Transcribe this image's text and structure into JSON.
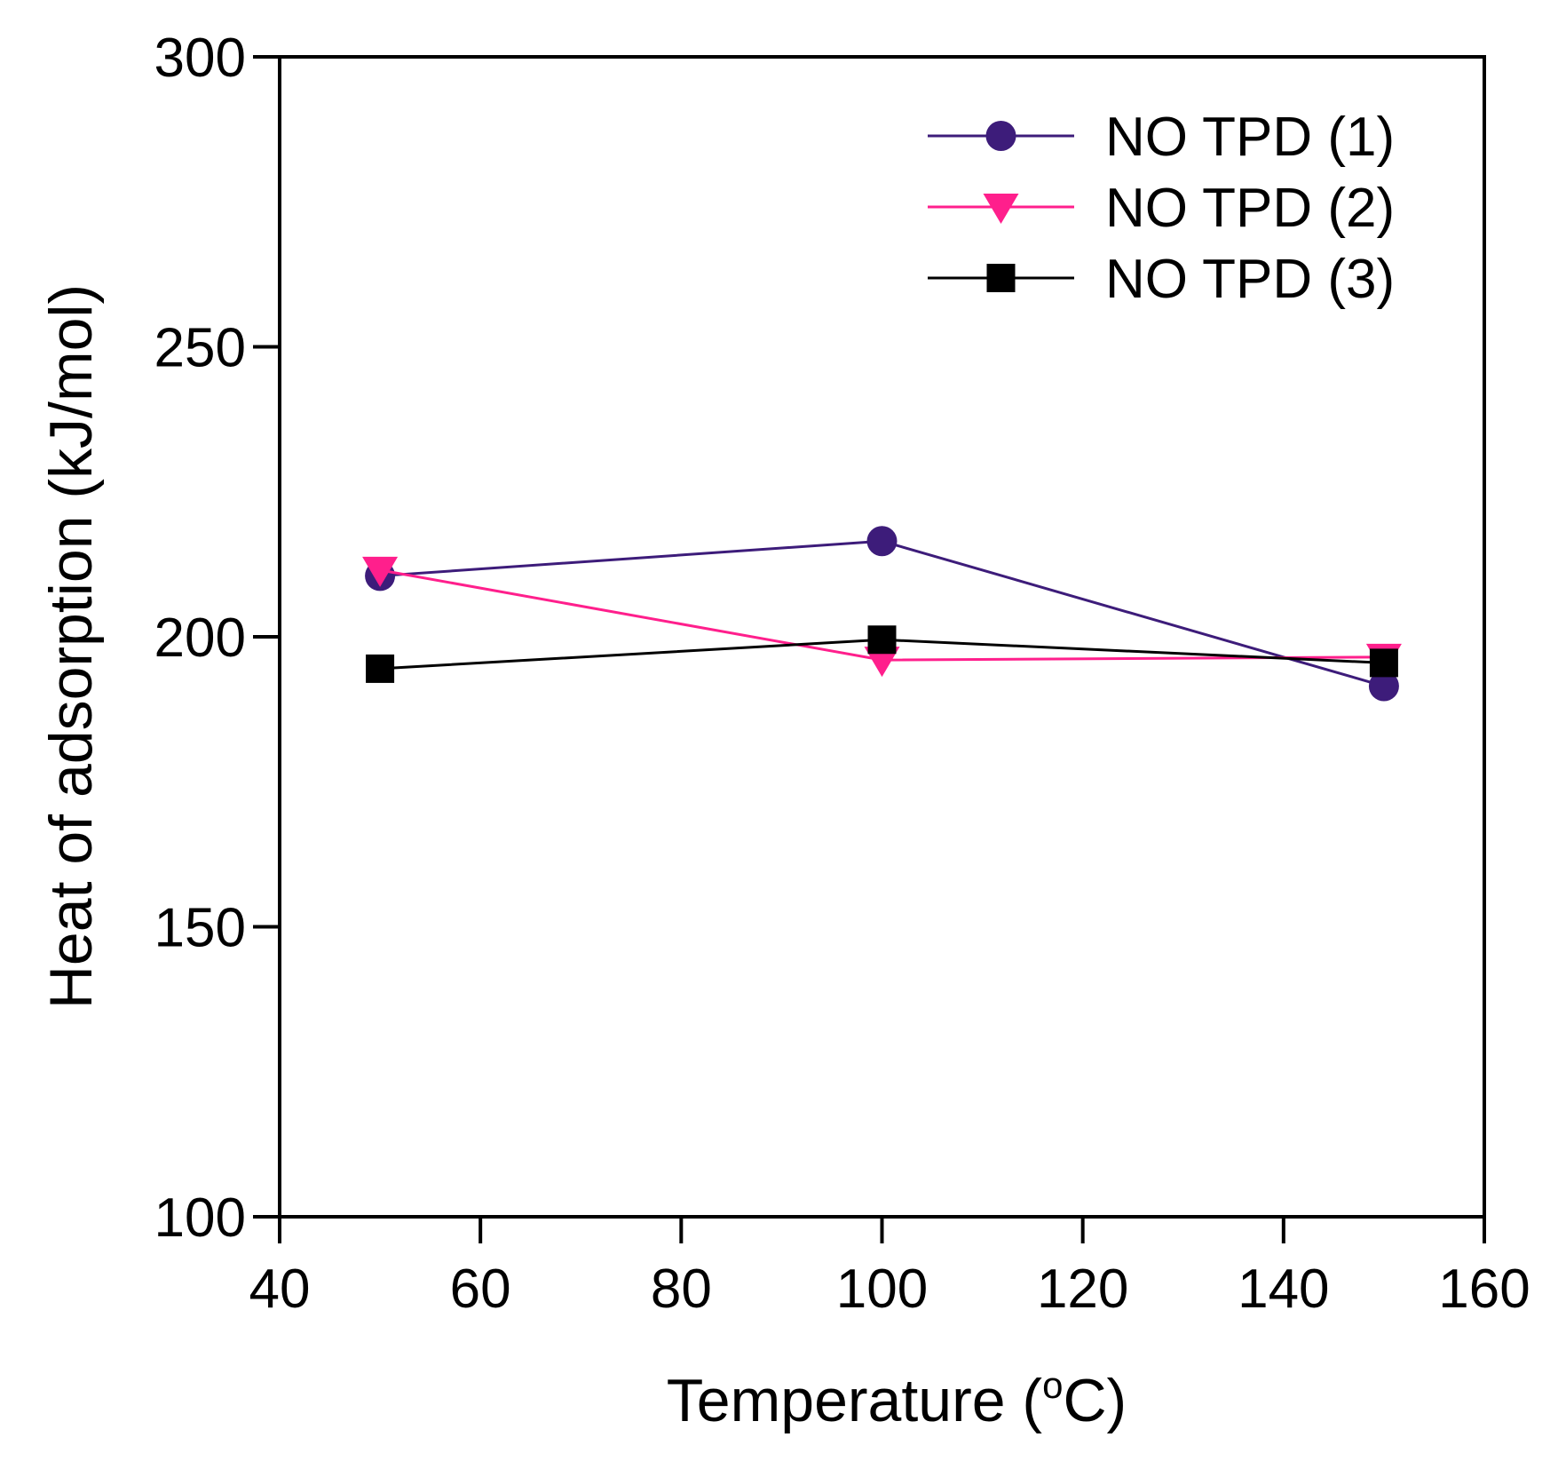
{
  "chart_data": {
    "type": "line",
    "title": "",
    "xlabel": "Temperature (",
    "xlabel_degree": "o",
    "xlabel_unit": "C)",
    "ylabel": "Heat of adsorption (kJ/mol)",
    "xlim": [
      40,
      160
    ],
    "ylim": [
      100,
      300
    ],
    "xticks": [
      40,
      60,
      80,
      100,
      120,
      140,
      160
    ],
    "yticks": [
      100,
      150,
      200,
      250,
      300
    ],
    "grid": false,
    "legend_position": "top-right",
    "series": [
      {
        "name": "NO TPD (1)",
        "color": "#3d1c7a",
        "marker": "circle",
        "x": [
          50,
          100,
          150
        ],
        "y": [
          210.5,
          216.5,
          191.5
        ]
      },
      {
        "name": "NO TPD (2)",
        "color": "#ff1f8c",
        "marker": "triangle-down",
        "x": [
          50,
          100,
          150
        ],
        "y": [
          211.5,
          196.0,
          196.5
        ]
      },
      {
        "name": "NO TPD (3)",
        "color": "#000000",
        "marker": "square",
        "x": [
          50,
          100,
          150
        ],
        "y": [
          194.5,
          199.5,
          195.5
        ]
      }
    ]
  }
}
